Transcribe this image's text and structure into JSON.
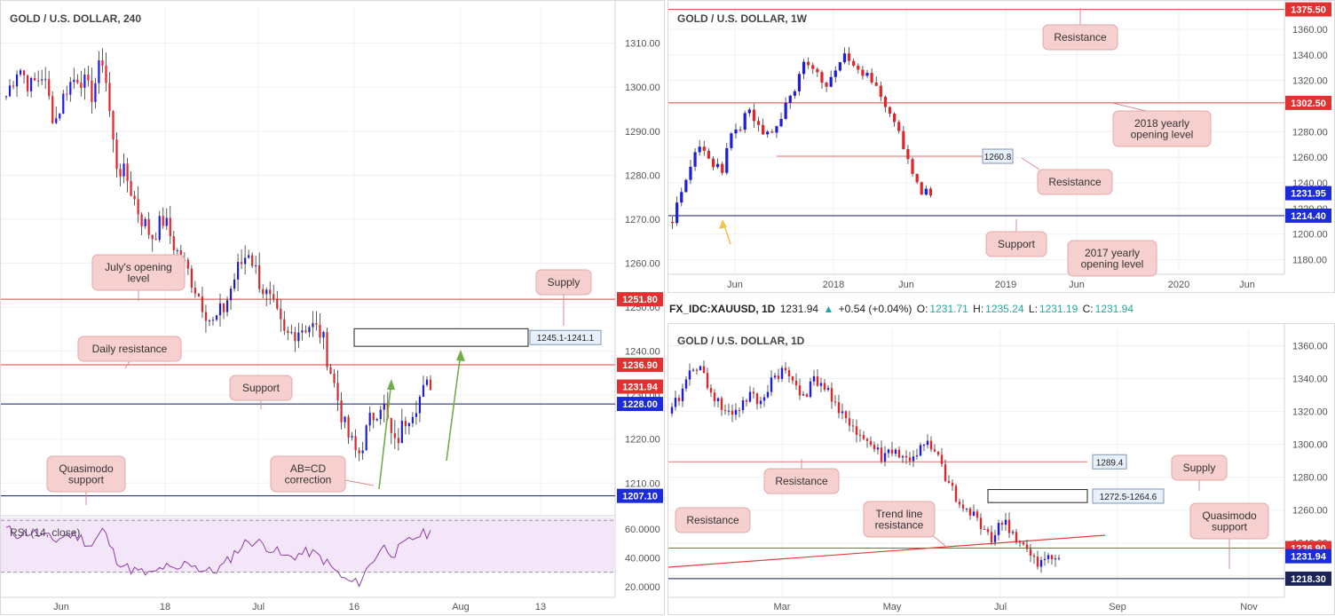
{
  "colors": {
    "up": "#1d1ddb",
    "down": "#e0262b",
    "hline_red": "#e33d3d",
    "hline_navy": "#131a5e",
    "note_bg": "#f6cfcf",
    "note_border": "#e3a8a8",
    "arrow_green": "#72ad4b",
    "arrow_yellow": "#f5c44d",
    "rsi_fill": "#f3e6f9",
    "rsi_line": "#8e3ea3"
  },
  "panels": {
    "h4": {
      "title": "GOLD / U.S. DOLLAR, 240",
      "y_ticks": [
        "1310.00",
        "1300.00",
        "1290.00",
        "1280.00",
        "1270.00",
        "1260.00",
        "1250.00",
        "1240.00",
        "1230.00",
        "1220.00",
        "1210.00"
      ],
      "x_ticks": [
        "Jun",
        "18",
        "Jul",
        "16",
        "Aug",
        "13"
      ],
      "price_tags": [
        {
          "label": "1251.80",
          "kind": "red"
        },
        {
          "label": "1236.90",
          "kind": "red"
        },
        {
          "label": "1231.94",
          "kind": "red"
        },
        {
          "label": "1228.00",
          "kind": "blue"
        },
        {
          "label": "1207.10",
          "kind": "blue"
        }
      ],
      "zone_label": "1245.1-1241.1",
      "notes": [
        "July's opening level",
        "Supply",
        "Daily resistance",
        "Support",
        "Quasimodo support",
        "AB=CD correction"
      ],
      "rsi": {
        "label": "RSI (14, close)",
        "ticks": [
          "60.0000",
          "40.0000",
          "20.0000"
        ]
      }
    },
    "w1": {
      "title": "GOLD / U.S. DOLLAR, 1W",
      "y_ticks": [
        "1360.00",
        "1340.00",
        "1320.00",
        "1280.00",
        "1260.00",
        "1240.00",
        "1220.00",
        "1200.00",
        "1180.00"
      ],
      "x_ticks": [
        "Jun",
        "2018",
        "Jun",
        "2019",
        "Jun",
        "2020",
        "Jun"
      ],
      "price_tags": [
        {
          "label": "1375.50",
          "kind": "red"
        },
        {
          "label": "1302.50",
          "kind": "red"
        },
        {
          "label": "1231.95",
          "kind": "blue"
        },
        {
          "label": "1214.40",
          "kind": "blue"
        }
      ],
      "level_label": "1260.8",
      "notes": [
        "Resistance",
        "2018 yearly opening level",
        "Resistance",
        "Support",
        "2017 yearly opening level"
      ]
    },
    "d1": {
      "title": "GOLD / U.S. DOLLAR, 1D",
      "info": {
        "symbol": "FX_IDC:XAUUSD, 1D",
        "price": "1231.94",
        "arrow": "▲",
        "change": "+0.54 (+0.04%)",
        "o_label": "O:",
        "o": "1231.71",
        "h_label": "H:",
        "h": "1235.24",
        "l_label": "L:",
        "l": "1231.19",
        "c_label": "C:",
        "c": "1231.94"
      },
      "y_ticks": [
        "1360.00",
        "1340.00",
        "1320.00",
        "1300.00",
        "1280.00",
        "1260.00",
        "1240.00",
        "1220.00"
      ],
      "x_ticks": [
        "Mar",
        "May",
        "Jul",
        "Sep",
        "Nov"
      ],
      "price_tags": [
        {
          "label": "1236.90",
          "kind": "red"
        },
        {
          "label": "1231.94",
          "kind": "blue"
        },
        {
          "label": "1218.30",
          "kind": "navy"
        }
      ],
      "level_label": "1289.4",
      "zone_label": "1272.5-1264.6",
      "notes": [
        "Supply",
        "Resistance",
        "Resistance",
        "Trend line resistance",
        "Quasimodo support"
      ]
    }
  },
  "chart_data": [
    {
      "type": "candlestick",
      "title": "GOLD / U.S. DOLLAR, 240",
      "ylim": [
        1203,
        1318
      ],
      "x": [
        "Jun",
        "18",
        "Jul",
        "16",
        "Aug",
        "13"
      ],
      "close_path": [
        1298,
        1305,
        1300,
        1303,
        1292,
        1300,
        1303,
        1298,
        1307,
        1283,
        1279,
        1271,
        1266,
        1270,
        1263,
        1258,
        1252,
        1246,
        1250,
        1258,
        1263,
        1255,
        1250,
        1243,
        1245,
        1246,
        1244,
        1233,
        1222,
        1216,
        1224,
        1229,
        1218,
        1225,
        1229,
        1233
      ],
      "levels": [
        {
          "label": "1251.80",
          "value": 1251.8
        },
        {
          "label": "1236.90",
          "value": 1236.9
        },
        {
          "label": "1228.00",
          "value": 1228.0
        },
        {
          "label": "1207.10",
          "value": 1207.1
        }
      ],
      "zone": {
        "label": "1245.1-1241.1",
        "from": 1241.1,
        "to": 1245.1
      },
      "rsi": {
        "ylim": [
          15,
          68
        ],
        "values": [
          60,
          56,
          58,
          55,
          52,
          56,
          55,
          48,
          60,
          40,
          33,
          30,
          28,
          34,
          30,
          38,
          32,
          30,
          35,
          45,
          52,
          50,
          46,
          40,
          42,
          44,
          40,
          32,
          24,
          22,
          35,
          48,
          43,
          50,
          56,
          57
        ]
      }
    },
    {
      "type": "candlestick",
      "title": "GOLD / U.S. DOLLAR, 1W",
      "ylim": [
        1170,
        1378
      ],
      "x": [
        "Jun",
        "2018",
        "Jun",
        "2019",
        "Jun",
        "2020",
        "Jun"
      ],
      "close_path": [
        1212,
        1228,
        1248,
        1270,
        1262,
        1255,
        1252,
        1275,
        1283,
        1296,
        1288,
        1272,
        1281,
        1290,
        1306,
        1320,
        1335,
        1330,
        1316,
        1321,
        1333,
        1339,
        1335,
        1325,
        1318,
        1306,
        1293,
        1282,
        1265,
        1245,
        1232,
        1232
      ],
      "levels": [
        {
          "label": "1375.50",
          "value": 1375.5
        },
        {
          "label": "1302.50",
          "value": 1302.5
        },
        {
          "label": "1260.8",
          "value": 1260.8
        },
        {
          "label": "1214.40",
          "value": 1214.4
        }
      ]
    },
    {
      "type": "candlestick",
      "title": "GOLD / U.S. DOLLAR, 1D",
      "ylim": [
        1208,
        1370
      ],
      "x": [
        "Mar",
        "May",
        "Jul",
        "Sep",
        "Nov"
      ],
      "close_path": [
        1320,
        1334,
        1350,
        1340,
        1327,
        1318,
        1322,
        1330,
        1324,
        1340,
        1345,
        1338,
        1330,
        1340,
        1334,
        1318,
        1315,
        1305,
        1300,
        1292,
        1298,
        1290,
        1294,
        1300,
        1292,
        1276,
        1262,
        1258,
        1252,
        1242,
        1255,
        1244,
        1236,
        1226,
        1230,
        1232
      ],
      "levels": [
        {
          "label": "1289.4",
          "value": 1289.4
        },
        {
          "label": "1236.90",
          "value": 1236.9
        },
        {
          "label": "1218.30",
          "value": 1218.3
        }
      ],
      "zone": {
        "label": "1272.5-1264.6",
        "from": 1264.6,
        "to": 1272.5
      }
    }
  ]
}
